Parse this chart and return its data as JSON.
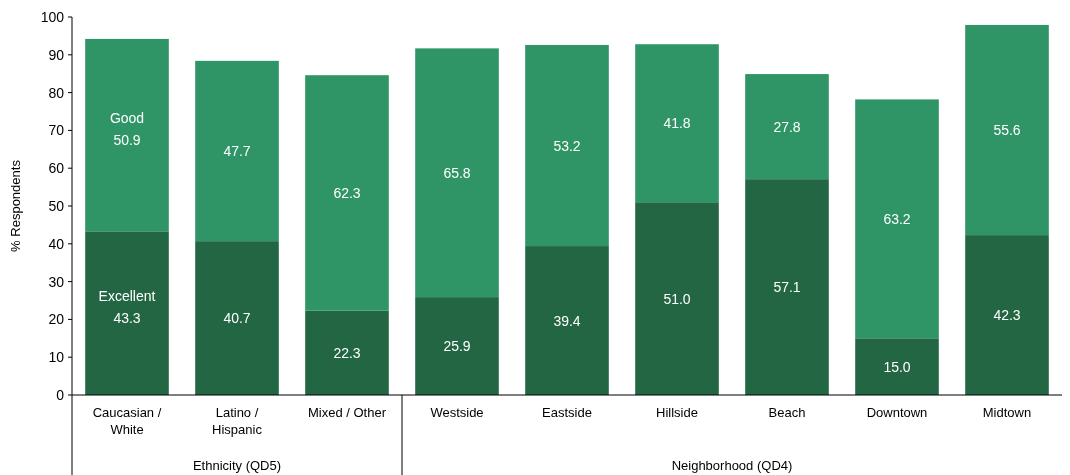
{
  "chart_data": {
    "type": "bar",
    "stacked": true,
    "ylabel": "% Respondents",
    "categories": [
      "Caucasian / White",
      "Latino / Hispanic",
      "Mixed / Other",
      "Westside",
      "Eastside",
      "Hillside",
      "Beach",
      "Downtown",
      "Midtown"
    ],
    "series": [
      {
        "name": "Excellent",
        "color": "#236644",
        "values": [
          43.3,
          40.7,
          22.3,
          25.9,
          39.4,
          51.0,
          57.1,
          15.0,
          42.3
        ],
        "value_labels": [
          "43.3",
          "40.7",
          "22.3",
          "25.9",
          "39.4",
          "51.0",
          "57.1",
          "15.0",
          "42.3"
        ]
      },
      {
        "name": "Good",
        "color": "#2f9566",
        "values": [
          50.9,
          47.7,
          62.3,
          65.8,
          53.2,
          41.8,
          27.8,
          63.2,
          55.6
        ],
        "value_labels": [
          "50.9",
          "47.7",
          "62.3",
          "65.8",
          "53.2",
          "41.8",
          "27.8",
          "63.2",
          "55.6"
        ]
      }
    ],
    "ylim": [
      0,
      100
    ],
    "yticks": [
      0,
      10,
      20,
      30,
      40,
      50,
      60,
      70,
      80,
      90,
      100
    ],
    "annotations": [
      "Ethnicity (QD5)",
      "Neighborhood (QD4)"
    ]
  }
}
